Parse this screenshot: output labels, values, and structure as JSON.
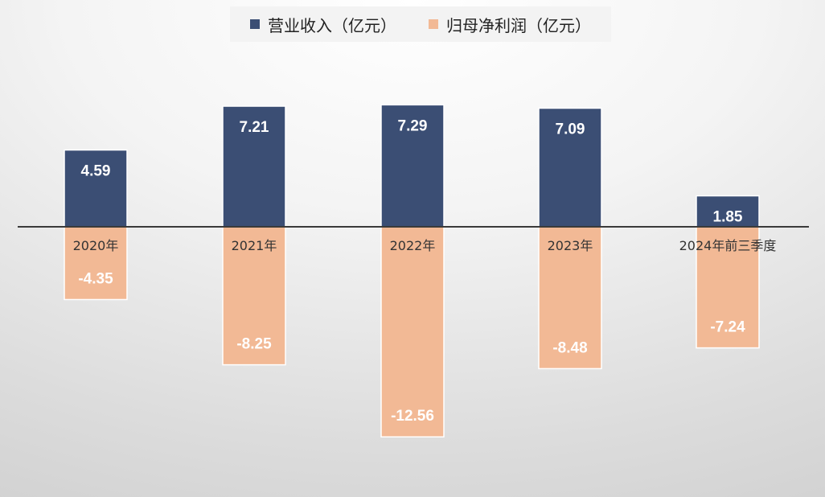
{
  "chart_data": {
    "type": "bar",
    "categories": [
      "2020年",
      "2021年",
      "2022年",
      "2023年",
      "2024年前三季度"
    ],
    "series": [
      {
        "name": "营业收入（亿元）",
        "color": "#3b4e74",
        "values": [
          4.59,
          7.21,
          7.29,
          7.09,
          1.85
        ]
      },
      {
        "name": "归母净利润（亿元）",
        "color": "#f2b995",
        "values": [
          -4.35,
          -8.25,
          -12.56,
          -8.48,
          -7.24
        ]
      }
    ],
    "value_labels_1": [
      "4.59",
      "7.21",
      "7.29",
      "7.09",
      "1.85"
    ],
    "value_labels_2": [
      "-4.35",
      "-8.25",
      "-12.56",
      "-8.48",
      "-7.24"
    ],
    "ylim": [
      -12.9,
      9.9
    ],
    "grid": false,
    "legend_position": "top",
    "title": "",
    "xlabel": "",
    "ylabel": ""
  }
}
